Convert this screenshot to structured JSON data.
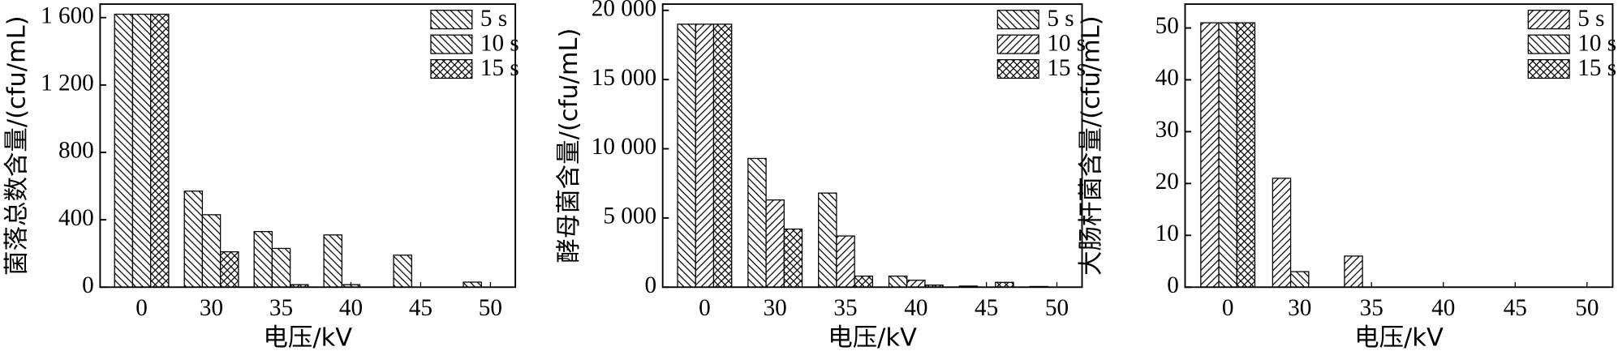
{
  "chart_data": [
    {
      "type": "bar",
      "x_label": "电压/kV",
      "y_label": "菌落总数含量/(cfu/mL)",
      "legend": "upper right",
      "categories": [
        "0",
        "30",
        "35",
        "40",
        "45",
        "50"
      ],
      "series": [
        {
          "name": "5 s",
          "hatch": "backslash",
          "values": [
            1620,
            570,
            330,
            310,
            190,
            30
          ]
        },
        {
          "name": "10 s",
          "hatch": "backslash",
          "values": [
            1620,
            430,
            230,
            15,
            0,
            0
          ]
        },
        {
          "name": "15 s",
          "hatch": "cross",
          "values": [
            1620,
            210,
            15,
            0,
            0,
            0
          ]
        }
      ],
      "ylim": [
        0,
        1680
      ],
      "yticks": [
        0,
        400,
        800,
        {
          "value": 1200,
          "label": "1 200"
        },
        {
          "value": 1600,
          "label": "1 600"
        }
      ]
    },
    {
      "type": "bar",
      "x_label": "电压/kV",
      "y_label": "酵母菌含量/(cfu/mL)",
      "legend": "upper right",
      "categories": [
        "0",
        "30",
        "35",
        "40",
        "45",
        "50"
      ],
      "series": [
        {
          "name": "5 s",
          "hatch": "backslash",
          "values": [
            19000,
            9300,
            6800,
            800,
            80,
            50
          ]
        },
        {
          "name": "10 s",
          "hatch": "slash",
          "values": [
            19000,
            6300,
            3700,
            500,
            0,
            0
          ]
        },
        {
          "name": "15 s",
          "hatch": "cross",
          "values": [
            19000,
            4200,
            800,
            150,
            350,
            0
          ]
        }
      ],
      "ylim": [
        0,
        20450
      ],
      "yticks": [
        0,
        {
          "value": 5000,
          "label": "5 000"
        },
        {
          "value": 10000,
          "label": "10 000"
        },
        {
          "value": 15000,
          "label": "15 000"
        },
        {
          "value": 20000,
          "label": "20 000"
        }
      ]
    },
    {
      "type": "bar",
      "x_label": "电压/kV",
      "y_label": "大肠杆菌含量/(cfu/mL)",
      "legend": "upper right",
      "categories": [
        "0",
        "30",
        "35",
        "40",
        "45",
        "50"
      ],
      "series": [
        {
          "name": "5 s",
          "hatch": "slash",
          "values": [
            51,
            21,
            6,
            0,
            0,
            0
          ]
        },
        {
          "name": "10 s",
          "hatch": "backslash",
          "values": [
            51,
            3,
            0,
            0,
            0,
            0
          ]
        },
        {
          "name": "15 s",
          "hatch": "cross",
          "values": [
            51,
            0,
            0,
            0,
            0,
            0
          ]
        }
      ],
      "ylim": [
        0,
        54.6
      ],
      "yticks": [
        0,
        10,
        20,
        30,
        40,
        50
      ]
    }
  ]
}
